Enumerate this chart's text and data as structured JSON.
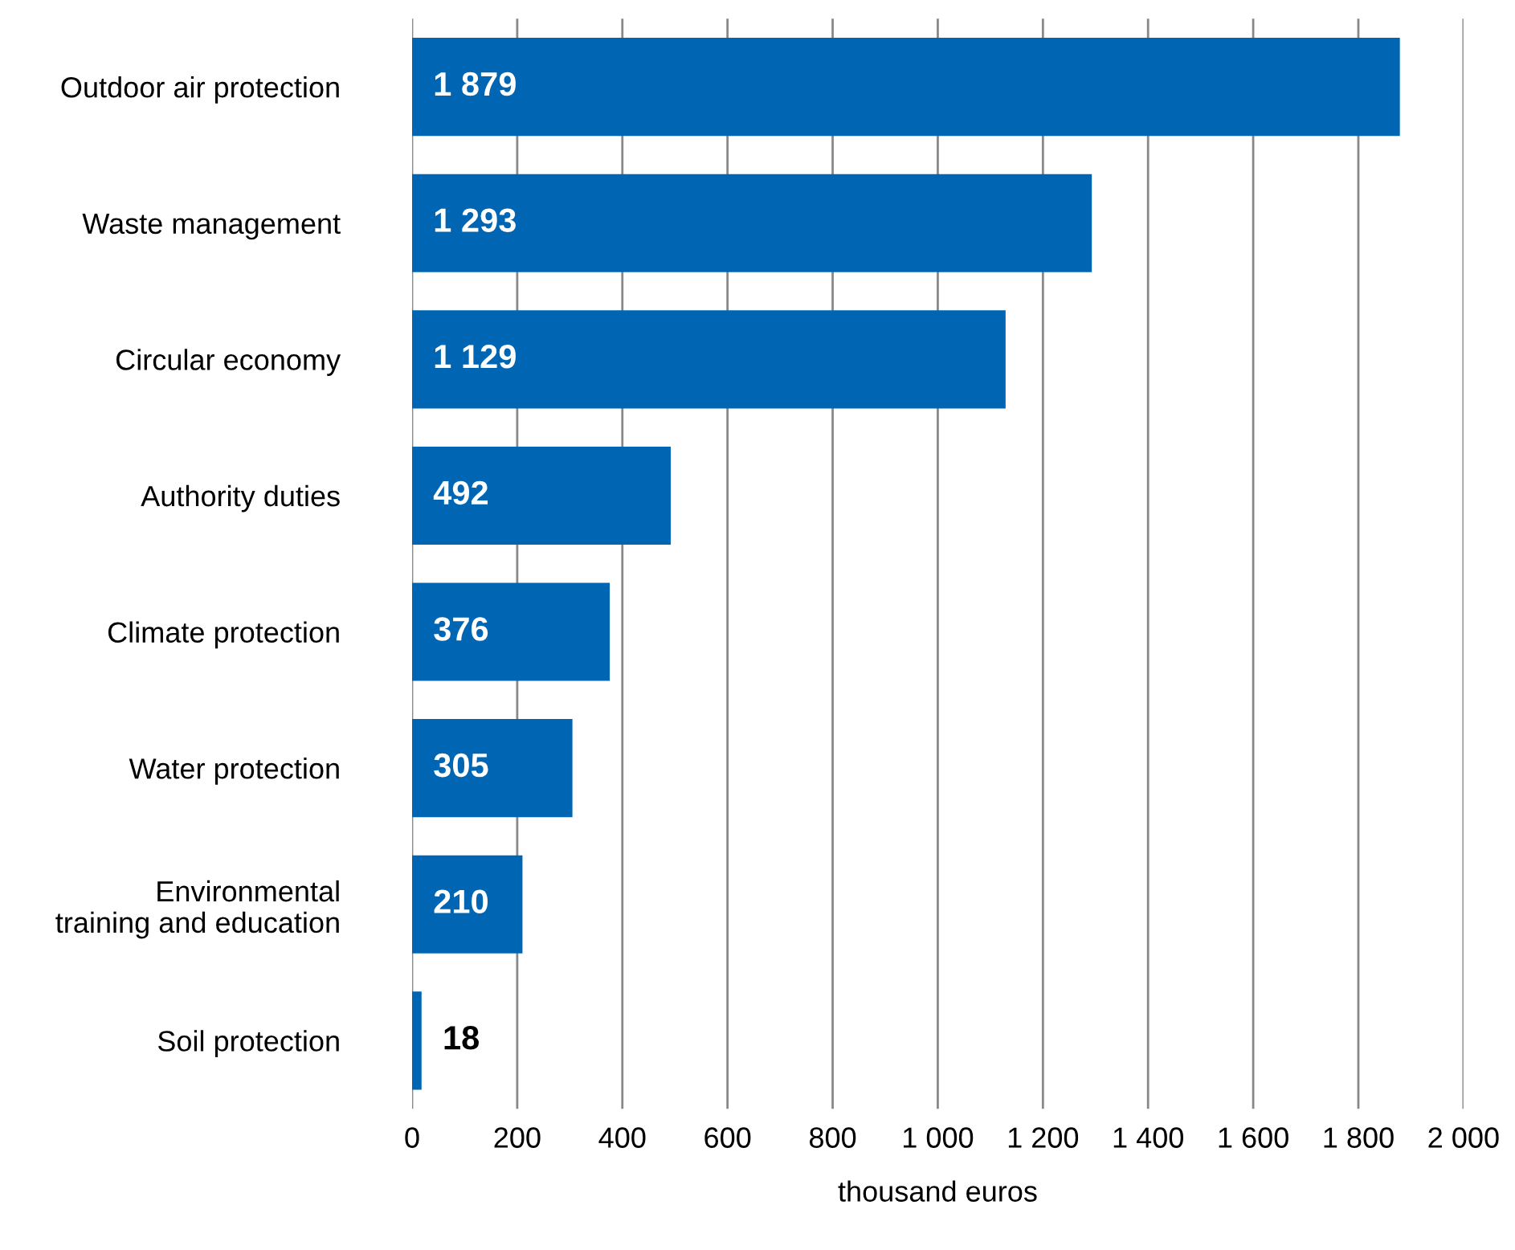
{
  "chart_data": {
    "type": "bar",
    "orientation": "horizontal",
    "xlabel": "thousand euros",
    "categories": [
      "Outdoor air protection",
      "Waste management",
      "Circular economy",
      "Authority duties",
      "Climate protection",
      "Water protection",
      "Environmental\ntraining and education",
      "Soil protection"
    ],
    "values": [
      1879,
      1293,
      1129,
      492,
      376,
      305,
      210,
      18
    ],
    "value_labels": [
      "1 879",
      "1 293",
      "1 129",
      "492",
      "376",
      "305",
      "210",
      "18"
    ],
    "color": "#0066b3",
    "xlim": [
      0,
      2000
    ],
    "xticks": [
      0,
      200,
      400,
      600,
      800,
      {
        "value": 1000,
        "label": "1 000"
      },
      {
        "value": 1200,
        "label": "1 200"
      },
      {
        "value": 1400,
        "label": "1 400"
      },
      {
        "value": 1600,
        "label": "1 600"
      },
      {
        "value": 1800,
        "label": "1 800"
      },
      {
        "value": 2000,
        "label": "2 000"
      }
    ],
    "grid": "x"
  }
}
